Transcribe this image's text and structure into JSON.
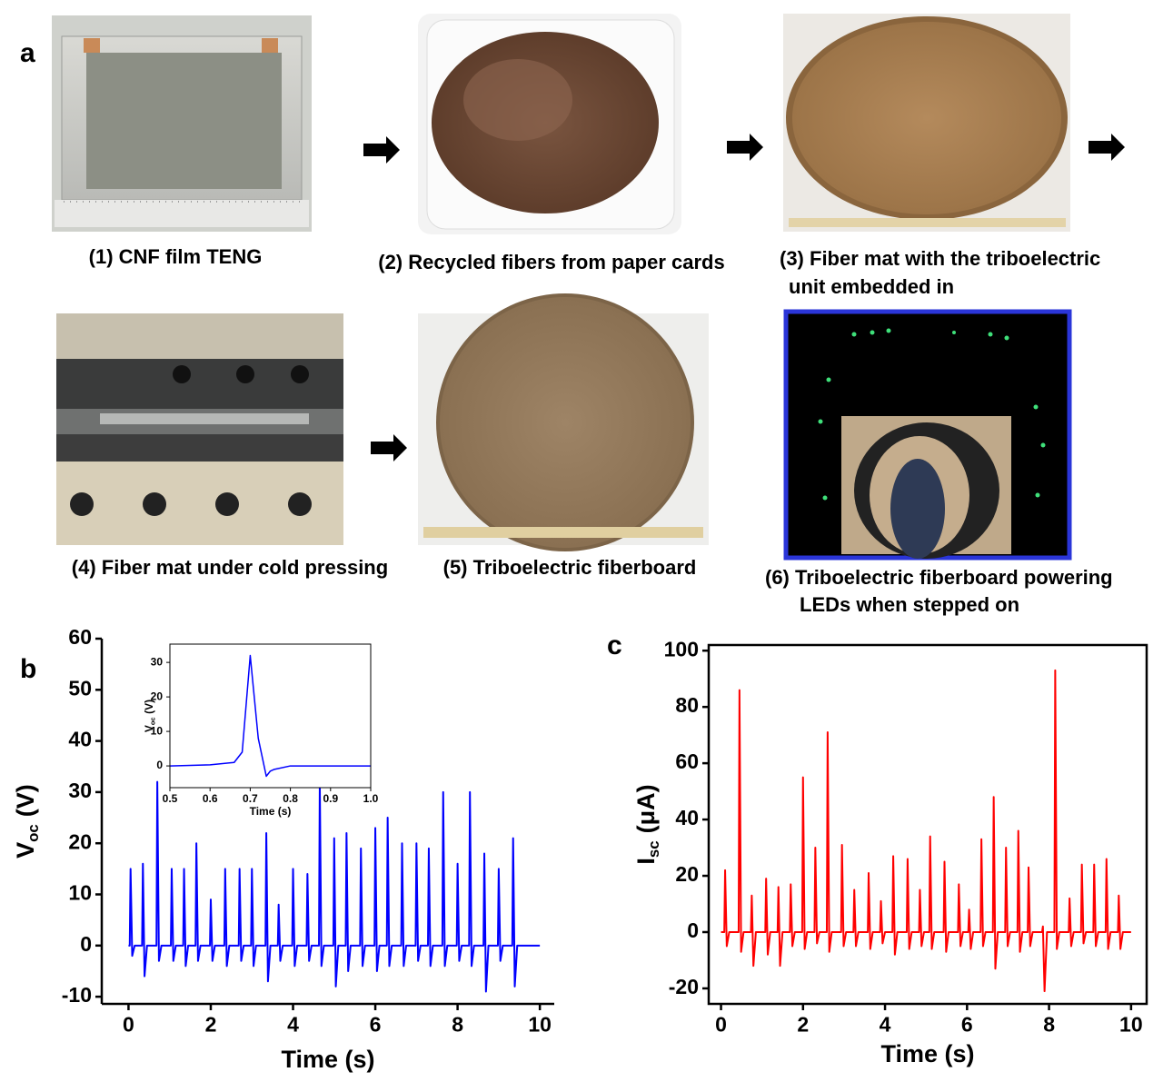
{
  "panel_a": {
    "label": "a",
    "captions": [
      [
        "(1) CNF film TENG"
      ],
      [
        "(2) Recycled fibers from paper cards"
      ],
      [
        "(3) Fiber mat with the triboelectric",
        "unit embedded in"
      ],
      [
        "(4) Fiber mat under cold pressing"
      ],
      [
        "(5) Triboelectric fiberboard"
      ],
      [
        "(6) Triboelectric fiberboard powering",
        "LEDs when stepped on"
      ]
    ]
  },
  "chart_data": [
    {
      "type": "line",
      "panel_label": "b",
      "xlabel": "Time (s)",
      "ylabel": {
        "symbol": "V",
        "subscript": "oc",
        "unit": "(V)"
      },
      "color": "#0000ff",
      "axes_box": false,
      "xlim": [
        -0.65,
        10.35
      ],
      "ylim": [
        -11.4,
        60
      ],
      "xticks": [
        0,
        2,
        4,
        6,
        8,
        10
      ],
      "yticks": [
        -10,
        0,
        10,
        20,
        30,
        40,
        50,
        60
      ],
      "x": [
        0,
        0.03,
        0.05,
        0.09,
        0.15,
        0.33,
        0.35,
        0.39,
        0.45,
        0.68,
        0.7,
        0.74,
        0.8,
        1.03,
        1.05,
        1.09,
        1.15,
        1.33,
        1.35,
        1.39,
        1.45,
        1.63,
        1.65,
        1.69,
        1.75,
        1.98,
        2,
        2.04,
        2.1,
        2.33,
        2.35,
        2.39,
        2.45,
        2.68,
        2.7,
        2.74,
        2.8,
        2.98,
        3,
        3.04,
        3.1,
        3.33,
        3.35,
        3.39,
        3.45,
        3.63,
        3.65,
        3.69,
        3.75,
        3.98,
        4,
        4.04,
        4.1,
        4.33,
        4.35,
        4.39,
        4.45,
        4.63,
        4.65,
        4.69,
        4.75,
        4.98,
        5,
        5.04,
        5.1,
        5.28,
        5.3,
        5.34,
        5.4,
        5.63,
        5.65,
        5.69,
        5.75,
        5.98,
        6,
        6.04,
        6.1,
        6.28,
        6.3,
        6.34,
        6.4,
        6.63,
        6.65,
        6.69,
        6.75,
        6.98,
        7,
        7.04,
        7.1,
        7.28,
        7.3,
        7.34,
        7.4,
        7.63,
        7.65,
        7.69,
        7.75,
        7.98,
        8,
        8.04,
        8.1,
        8.28,
        8.3,
        8.34,
        8.4,
        8.63,
        8.65,
        8.69,
        8.75,
        8.98,
        9,
        9.04,
        9.1,
        9.33,
        9.35,
        9.39,
        9.45,
        10
      ],
      "values": [
        0,
        0,
        15,
        -2,
        0,
        0,
        16,
        -6,
        0,
        0,
        32,
        -3,
        0,
        0,
        15,
        -3,
        0,
        0,
        15,
        -4,
        0,
        0,
        20,
        -3,
        0,
        0,
        9,
        -3,
        0,
        0,
        15,
        -4,
        0,
        0,
        15,
        -3,
        0,
        0,
        15,
        -4,
        0,
        0,
        22,
        -7,
        0,
        0,
        8,
        -3,
        0,
        0,
        15,
        -4,
        0,
        0,
        14,
        -3,
        0,
        0,
        32,
        -4,
        0,
        0,
        21,
        -8,
        0,
        0,
        22,
        -5,
        0,
        0,
        19,
        -4,
        0,
        0,
        23,
        -5,
        0,
        0,
        25,
        -4,
        0,
        0,
        20,
        -4,
        0,
        0,
        20,
        -3,
        0,
        0,
        19,
        -4,
        0,
        0,
        30,
        -4,
        0,
        0,
        16,
        -3,
        0,
        0,
        30,
        -4,
        0,
        0,
        18,
        -9,
        0,
        0,
        15,
        -3,
        0,
        0,
        21,
        -8,
        0,
        0
      ]
    },
    {
      "type": "line",
      "xlabel": "Time (s)",
      "ylabel": {
        "symbol": "V",
        "subscript": "oc",
        "unit": "(V)"
      },
      "color": "#0000ff",
      "axes_box": true,
      "xlim": [
        0.5,
        1.0
      ],
      "ylim": [
        -6.3,
        35.3
      ],
      "xticks": [
        0.5,
        0.6,
        0.7,
        0.8,
        0.9,
        {
          "value": 1,
          "label": "1.0"
        }
      ],
      "yticks": [
        0,
        10,
        20,
        30
      ],
      "x": [
        0.5,
        0.6,
        0.66,
        0.68,
        0.7,
        0.72,
        0.74,
        0.75,
        0.76,
        0.8,
        1.0
      ],
      "values": [
        0,
        0.3,
        1,
        4,
        32,
        8,
        -3,
        -1.5,
        -1,
        0,
        0
      ]
    },
    {
      "type": "line",
      "panel_label": "c",
      "xlabel": "Time (s)",
      "ylabel": {
        "symbol": "I",
        "subscript": "sc",
        "unit": "(μA)"
      },
      "color": "#ff0000",
      "axes_box": true,
      "xlim": [
        -0.3,
        10.38
      ],
      "ylim": [
        -25.5,
        102
      ],
      "xticks": [
        0,
        2,
        4,
        6,
        8,
        10
      ],
      "yticks": [
        -20,
        0,
        20,
        40,
        60,
        80,
        100
      ],
      "x": [
        0,
        0.08,
        0.1,
        0.14,
        0.2,
        0.43,
        0.45,
        0.49,
        0.55,
        0.73,
        0.75,
        0.79,
        0.85,
        1.08,
        1.1,
        1.14,
        1.2,
        1.38,
        1.4,
        1.44,
        1.5,
        1.68,
        1.7,
        1.74,
        1.8,
        1.98,
        2,
        2.04,
        2.1,
        2.28,
        2.3,
        2.34,
        2.4,
        2.58,
        2.6,
        2.64,
        2.7,
        2.93,
        2.95,
        2.99,
        3.05,
        3.23,
        3.25,
        3.29,
        3.35,
        3.58,
        3.6,
        3.64,
        3.7,
        3.88,
        3.9,
        3.94,
        4,
        4.18,
        4.2,
        4.24,
        4.3,
        4.53,
        4.55,
        4.59,
        4.65,
        4.83,
        4.85,
        4.89,
        4.95,
        5.08,
        5.1,
        5.14,
        5.2,
        5.43,
        5.45,
        5.49,
        5.55,
        5.78,
        5.8,
        5.84,
        5.9,
        6.03,
        6.05,
        6.09,
        6.15,
        6.33,
        6.35,
        6.39,
        6.45,
        6.63,
        6.65,
        6.69,
        6.75,
        6.93,
        6.95,
        6.99,
        7.05,
        7.23,
        7.25,
        7.29,
        7.35,
        7.48,
        7.5,
        7.54,
        7.6,
        7.83,
        7.85,
        7.89,
        7.95,
        8.13,
        8.15,
        8.19,
        8.25,
        8.48,
        8.5,
        8.54,
        8.6,
        8.78,
        8.8,
        8.84,
        8.9,
        9.08,
        9.1,
        9.14,
        9.2,
        9.38,
        9.4,
        9.44,
        9.5,
        9.68,
        9.7,
        9.74,
        9.8,
        10
      ],
      "values": [
        0,
        0,
        22,
        -5,
        0,
        0,
        86,
        -7,
        0,
        0,
        13,
        -12,
        0,
        0,
        19,
        -8,
        0,
        0,
        16,
        -12,
        0,
        0,
        17,
        -5,
        0,
        0,
        55,
        -6,
        0,
        0,
        30,
        -4,
        0,
        0,
        71,
        -7,
        0,
        0,
        31,
        -5,
        0,
        0,
        15,
        -5,
        0,
        0,
        21,
        -6,
        0,
        0,
        11,
        -4,
        0,
        0,
        27,
        -8,
        0,
        0,
        26,
        -6,
        0,
        0,
        15,
        -5,
        0,
        0,
        34,
        -6,
        0,
        0,
        25,
        -7,
        0,
        0,
        17,
        -5,
        0,
        0,
        8,
        -6,
        0,
        0,
        33,
        -5,
        0,
        0,
        48,
        -13,
        0,
        0,
        30,
        -5,
        0,
        0,
        36,
        -7,
        0,
        0,
        23,
        -5,
        0,
        0,
        2,
        -21,
        0,
        0,
        93,
        -6,
        0,
        0,
        12,
        -5,
        0,
        0,
        24,
        -4,
        0,
        0,
        24,
        -5,
        0,
        0,
        26,
        -6,
        0,
        0,
        13,
        -6,
        0,
        0
      ]
    }
  ]
}
